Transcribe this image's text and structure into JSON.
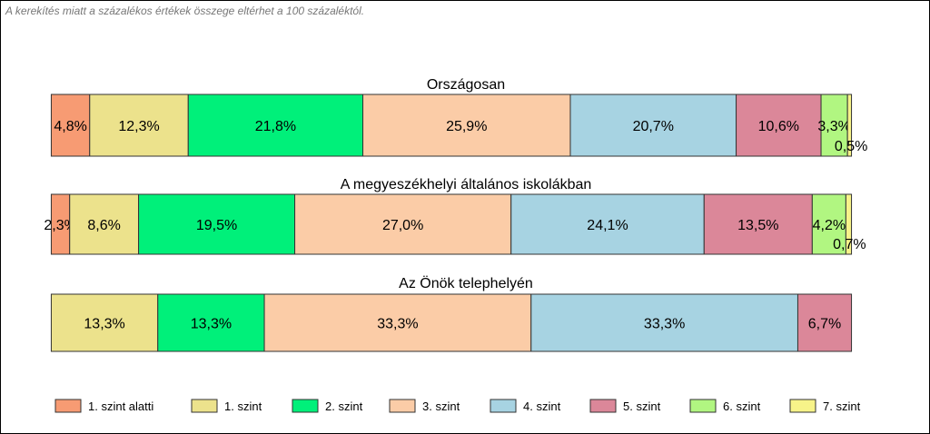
{
  "note": "A kerekítés miatt a  százalékos értékek összege eltérhet a 100 százaléktól.",
  "chart_data": {
    "type": "bar",
    "orientation": "horizontal-stacked",
    "categories": [
      "1. szint alatti",
      "1. szint",
      "2. szint",
      "3. szint",
      "4. szint",
      "5. szint",
      "6. szint",
      "7. szint"
    ],
    "colors": [
      "#f79b73",
      "#ece28c",
      "#00f07a",
      "#fbcca7",
      "#a7d3e2",
      "#db8799",
      "#b1f681",
      "#f7f389"
    ],
    "groups": [
      {
        "title": "Országosan",
        "values": [
          4.8,
          12.3,
          21.8,
          25.9,
          20.7,
          10.6,
          3.3,
          0.5
        ],
        "labels": [
          "4,8%",
          "12,3%",
          "21,8%",
          "25,9%",
          "20,7%",
          "10,6%",
          "3,3%",
          "0,5%"
        ]
      },
      {
        "title": "A megyeszékhelyi általános iskolákban",
        "values": [
          2.3,
          8.6,
          19.5,
          27.0,
          24.1,
          13.5,
          4.2,
          0.7
        ],
        "labels": [
          "2,3%",
          "8,6%",
          "19,5%",
          "27,0%",
          "24,1%",
          "13,5%",
          "4,2%",
          "0,7%"
        ]
      },
      {
        "title": "Az Önök telephelyén",
        "values": [
          0,
          13.3,
          13.3,
          33.3,
          33.3,
          6.7,
          0,
          0
        ],
        "labels": [
          "",
          "13,3%",
          "13,3%",
          "33,3%",
          "33,3%",
          "6,7%",
          "",
          ""
        ]
      }
    ],
    "legend_position": "bottom"
  }
}
